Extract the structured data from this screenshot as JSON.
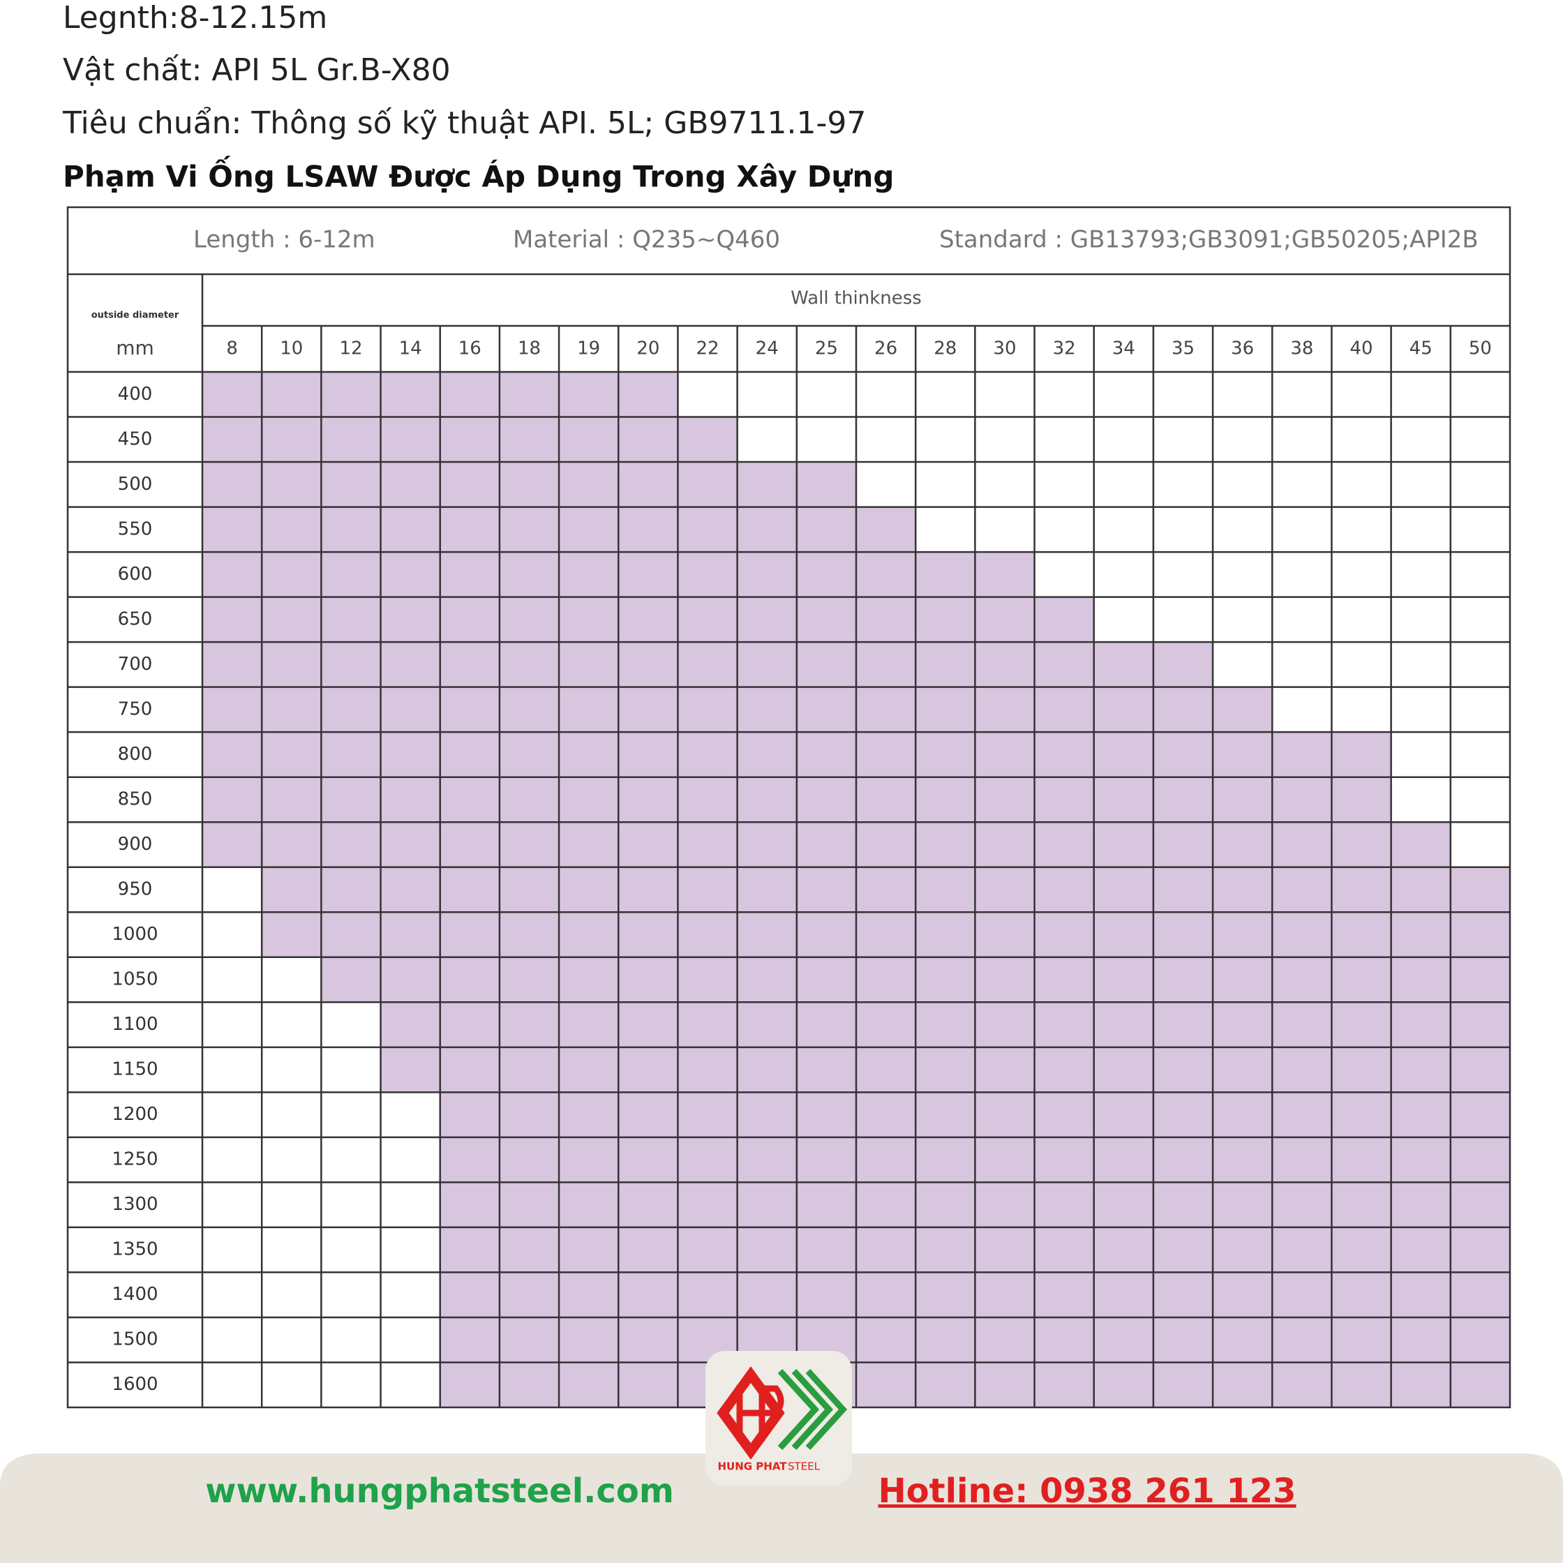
{
  "header": {
    "lines": [
      "Legnth:8-12.15m",
      "Vật chất: API 5L Gr.B-X80",
      "Tiêu chuẩn: Thông số kỹ thuật API. 5L; GB9711.1-97"
    ],
    "title": "Phạm Vi Ống LSAW Được Áp Dụng Trong Xây Dựng"
  },
  "table": {
    "info": {
      "length": "Length : 6-12m",
      "material": "Material : Q235~Q460",
      "standard": "Standard : GB13793;GB3091;GB50205;API2B"
    },
    "corner_label": "outside diameter",
    "group_label": "Wall thinkness",
    "unit": "mm",
    "thickness": [
      8,
      10,
      12,
      14,
      16,
      18,
      19,
      20,
      22,
      24,
      25,
      26,
      28,
      30,
      32,
      34,
      35,
      36,
      38,
      40,
      45,
      50
    ],
    "shade_color": "#d8c5de",
    "rows": [
      {
        "diameter": 400,
        "range": [
          8,
          20
        ]
      },
      {
        "diameter": 450,
        "range": [
          8,
          22
        ]
      },
      {
        "diameter": 500,
        "range": [
          8,
          25
        ]
      },
      {
        "diameter": 550,
        "range": [
          8,
          26
        ]
      },
      {
        "diameter": 600,
        "range": [
          8,
          30
        ]
      },
      {
        "diameter": 650,
        "range": [
          8,
          32
        ]
      },
      {
        "diameter": 700,
        "range": [
          8,
          35
        ]
      },
      {
        "diameter": 750,
        "range": [
          8,
          36
        ]
      },
      {
        "diameter": 800,
        "range": [
          8,
          40
        ]
      },
      {
        "diameter": 850,
        "range": [
          8,
          40
        ]
      },
      {
        "diameter": 900,
        "range": [
          8,
          45
        ]
      },
      {
        "diameter": 950,
        "range": [
          10,
          50
        ]
      },
      {
        "diameter": 1000,
        "range": [
          10,
          50
        ]
      },
      {
        "diameter": 1050,
        "range": [
          12,
          50
        ]
      },
      {
        "diameter": 1100,
        "range": [
          14,
          50
        ]
      },
      {
        "diameter": 1150,
        "range": [
          14,
          50
        ]
      },
      {
        "diameter": 1200,
        "range": [
          16,
          50
        ]
      },
      {
        "diameter": 1250,
        "range": [
          16,
          50
        ]
      },
      {
        "diameter": 1300,
        "range": [
          16,
          50
        ]
      },
      {
        "diameter": 1350,
        "range": [
          16,
          50
        ]
      },
      {
        "diameter": 1400,
        "range": [
          16,
          50
        ]
      },
      {
        "diameter": 1500,
        "range": [
          16,
          50
        ]
      },
      {
        "diameter": 1600,
        "range": [
          16,
          50
        ]
      }
    ]
  },
  "logo": {
    "name": "HUNG PHAT",
    "suffix": "STEEL"
  },
  "footer": {
    "website": "www.hungphatsteel.com",
    "hotline": "Hotline: 0938 261 123"
  }
}
